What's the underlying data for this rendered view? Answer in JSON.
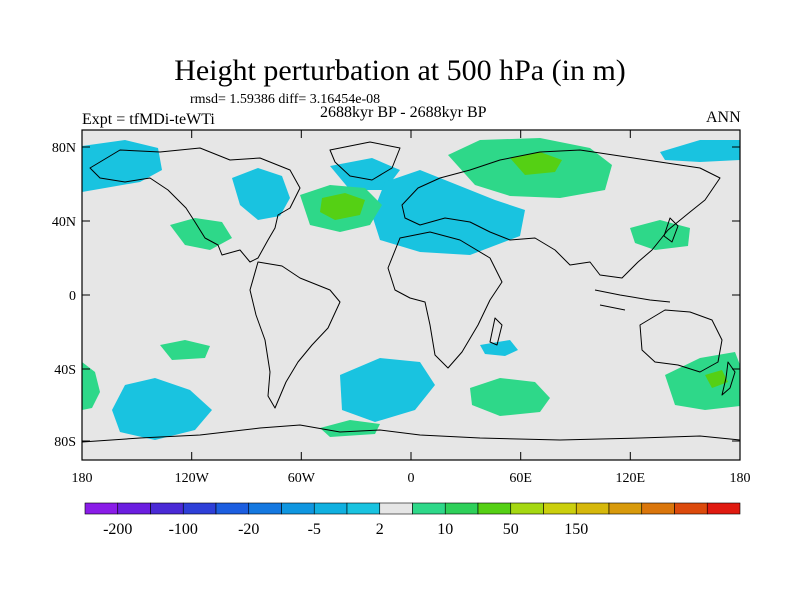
{
  "title": "Height perturbation at 500 hPa (in m)",
  "stats_line": "rmsd= 1.59386 diff= 3.16454e-08",
  "period": "2688kyr BP - 2688kyr BP",
  "experiment": "Expt = tfMDi-teWTi",
  "season": "ANN",
  "axes": {
    "lat_ticks": [
      "80N",
      "40N",
      "0",
      "40S",
      "80S"
    ],
    "lon_ticks": [
      "180",
      "120W",
      "60W",
      "0",
      "60E",
      "120E",
      "180"
    ]
  },
  "colorbar": {
    "labels": [
      "-200",
      "-100",
      "-20",
      "-5",
      "2",
      "10",
      "50",
      "150"
    ],
    "colors": [
      "#8a1ce8",
      "#6b1ee0",
      "#4a2ad6",
      "#2e3fd8",
      "#1c5ee0",
      "#1478e0",
      "#0f96e0",
      "#10b0e0",
      "#19c3e0",
      "#e6e6e6",
      "#2ed889",
      "#2ed05a",
      "#55d014",
      "#a5d812",
      "#cbcf0d",
      "#d6b80b",
      "#d89a0b",
      "#da760b",
      "#dc4a0c",
      "#e01a10"
    ]
  },
  "palette": {
    "ocean_gray": "#e6e6e6",
    "blue": "#19c3e0",
    "green": "#2ed889",
    "dark_green": "#55d014"
  }
}
